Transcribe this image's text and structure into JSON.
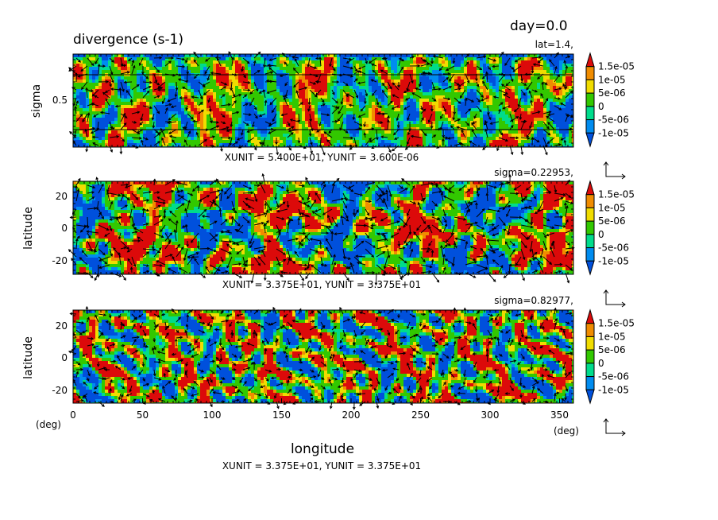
{
  "header": {
    "title": "divergence (s-1)",
    "day_label": "day=0.0"
  },
  "colorbar": {
    "labels": [
      "1.5e-05",
      "1e-05",
      "5e-06",
      "0",
      "-5e-06",
      "-1e-05"
    ],
    "colors": [
      "#dc0a0a",
      "#f08c00",
      "#f0dc00",
      "#32c800",
      "#00dc8c",
      "#008cf0",
      "#0050dc"
    ]
  },
  "chart_data": [
    {
      "type": "heatmap",
      "panel_label": "lat=1.4,",
      "xlabel": "",
      "ylabel": "sigma",
      "ylim": [
        0,
        1
      ],
      "yticks": [
        "0.5"
      ],
      "vector_unit_label": "XUNIT = 5.400E+01, YUNIT = 3.600E-06",
      "colormap_levels": [
        -1e-05,
        -5e-06,
        0,
        5e-06,
        1e-05,
        1.5e-05
      ]
    },
    {
      "type": "heatmap",
      "panel_label": "sigma=0.22953,",
      "xlabel": "",
      "ylabel": "latitude",
      "ylim": [
        -30,
        30
      ],
      "yticks": [
        "20",
        "0",
        "-20"
      ],
      "vector_unit_label": "XUNIT = 3.375E+01, YUNIT = 3.375E+01",
      "colormap_levels": [
        -1e-05,
        -5e-06,
        0,
        5e-06,
        1e-05,
        1.5e-05
      ]
    },
    {
      "type": "heatmap",
      "panel_label": "sigma=0.82977,",
      "xlabel": "longitude",
      "ylabel": "latitude",
      "xlim": [
        0,
        360
      ],
      "ylim": [
        -30,
        30
      ],
      "xticks": [
        "0",
        "50",
        "100",
        "150",
        "200",
        "250",
        "300",
        "350"
      ],
      "yticks": [
        "20",
        "0",
        "-20"
      ],
      "x_unit": "(deg)",
      "y_unit": "(deg)",
      "vector_unit_label": "XUNIT = 3.375E+01, YUNIT = 3.375E+01",
      "colormap_levels": [
        -1e-05,
        -5e-06,
        0,
        5e-06,
        1e-05,
        1.5e-05
      ]
    }
  ]
}
